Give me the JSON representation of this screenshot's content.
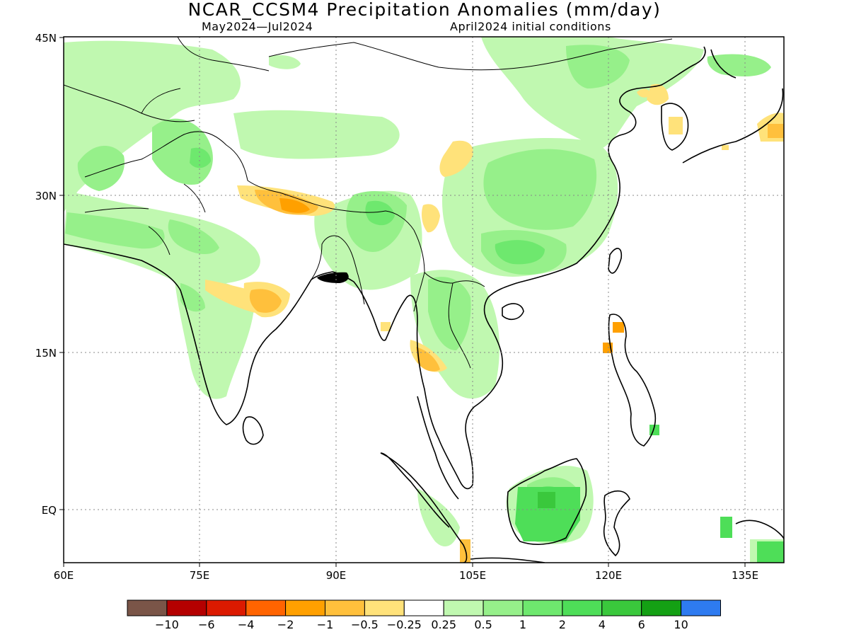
{
  "title": "NCAR_CCSM4 Precipitation Anomalies (mm/day)",
  "subtitle_left": "May2024—Jul2024",
  "subtitle_right": "April2024 initial conditions",
  "axes": {
    "x_ticks": [
      "60E",
      "75E",
      "90E",
      "105E",
      "120E",
      "135E"
    ],
    "y_ticks": [
      "45N",
      "30N",
      "15N",
      "EQ"
    ]
  },
  "colorbar": {
    "colors": [
      "#7a5548",
      "#b40000",
      "#dc1a00",
      "#ff6400",
      "#ffa000",
      "#ffc03c",
      "#ffe27a",
      "#ffffff",
      "#c0f8b0",
      "#96f08a",
      "#6ee86e",
      "#4ede58",
      "#3ac83c",
      "#14a014",
      "#2e7bf0"
    ],
    "labels": [
      "−10",
      "−6",
      "−4",
      "−2",
      "−1",
      "−0.5",
      "−0.25",
      "0.25",
      "0.5",
      "1",
      "2",
      "4",
      "6",
      "10"
    ]
  },
  "colors": {
    "coast": "#000000",
    "grid": "#888888",
    "wet_light": "#c0f8b0",
    "wet_mid": "#96f08a",
    "wet_strong": "#6ee86e",
    "wet_heavy": "#4ede58",
    "dry_light": "#ffe27a",
    "dry_mid": "#ffc03c",
    "dry_strong": "#ffa000"
  }
}
